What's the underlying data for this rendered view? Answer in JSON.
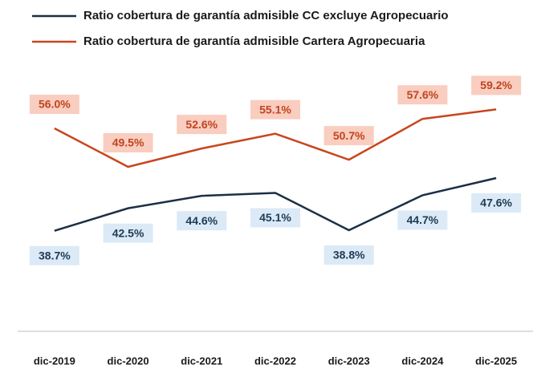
{
  "chart_data": {
    "type": "line",
    "categories": [
      "dic-2019",
      "dic-2020",
      "dic-2021",
      "dic-2022",
      "dic-2023",
      "dic-2024",
      "dic-2025"
    ],
    "series": [
      {
        "name": "Ratio cobertura de garantía admisible CC excluye Agropecuario",
        "color": "#1b2f45",
        "values": [
          38.7,
          42.5,
          44.6,
          45.1,
          38.8,
          44.7,
          47.6
        ],
        "value_labels": [
          "38.7%",
          "42.5%",
          "44.6%",
          "45.1%",
          "38.8%",
          "44.7%",
          "47.6%"
        ]
      },
      {
        "name": "Ratio cobertura de garantía admisible Cartera Agropecuaria",
        "color": "#c8461e",
        "values": [
          56.0,
          49.5,
          52.6,
          55.1,
          50.7,
          57.6,
          59.2
        ],
        "value_labels": [
          "56.0%",
          "49.5%",
          "52.6%",
          "55.1%",
          "50.7%",
          "57.6%",
          "59.2%"
        ]
      }
    ],
    "ylim": [
      20,
      70
    ]
  }
}
